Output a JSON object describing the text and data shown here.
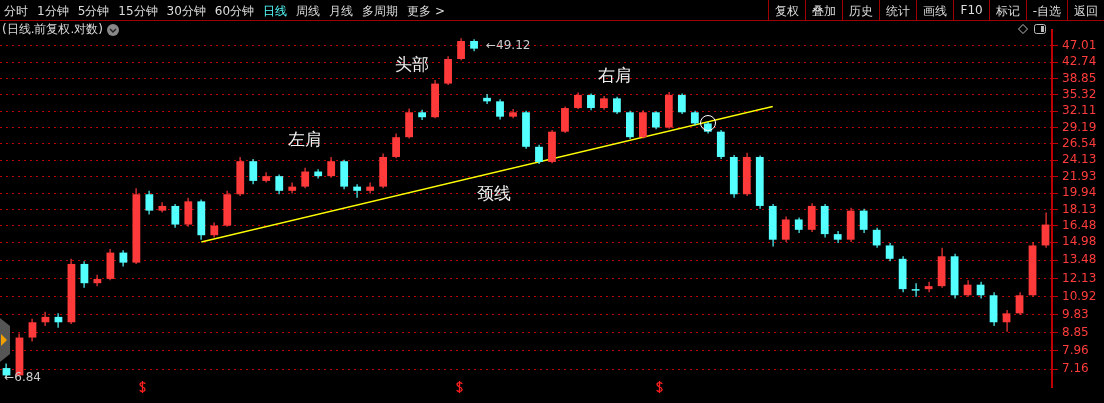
{
  "chart_data": {
    "type": "candlestick",
    "title": "(日线.前复权.对数)",
    "categories": [
      null,
      null,
      null,
      null,
      null,
      null,
      null,
      null,
      null,
      null,
      null,
      null,
      null,
      null,
      null,
      null,
      null,
      null,
      null,
      null,
      null,
      null,
      null,
      null,
      null,
      null,
      null,
      null,
      null,
      null,
      null,
      null,
      null,
      null,
      null,
      null,
      null,
      null,
      null,
      null,
      null,
      null,
      null,
      null,
      null,
      null,
      null,
      null,
      null,
      null,
      null,
      null,
      null,
      null,
      null,
      null,
      null,
      null,
      null,
      null,
      null,
      null,
      null,
      null,
      null,
      null,
      null,
      null,
      null,
      null,
      null,
      null,
      null,
      null,
      null,
      null,
      null,
      null,
      null,
      null,
      null
    ],
    "ohlc": [
      [
        7.2,
        7.4,
        6.84,
        6.9
      ],
      [
        6.9,
        8.8,
        6.9,
        8.6
      ],
      [
        8.6,
        9.6,
        8.4,
        9.4
      ],
      [
        9.4,
        10.0,
        9.2,
        9.7
      ],
      [
        9.7,
        9.9,
        9.1,
        9.4
      ],
      [
        9.4,
        13.6,
        9.3,
        13.2
      ],
      [
        13.2,
        13.4,
        11.5,
        11.8
      ],
      [
        11.8,
        12.4,
        11.6,
        12.1
      ],
      [
        12.1,
        14.4,
        12.0,
        14.1
      ],
      [
        14.1,
        14.3,
        13.0,
        13.3
      ],
      [
        13.3,
        20.5,
        13.2,
        19.8
      ],
      [
        19.8,
        20.2,
        17.6,
        18.0
      ],
      [
        18.0,
        18.9,
        17.8,
        18.5
      ],
      [
        18.5,
        18.7,
        16.3,
        16.6
      ],
      [
        16.6,
        19.4,
        16.4,
        19.0
      ],
      [
        19.0,
        19.2,
        15.2,
        15.6
      ],
      [
        15.6,
        16.8,
        15.4,
        16.5
      ],
      [
        16.5,
        20.2,
        16.4,
        19.8
      ],
      [
        19.8,
        24.6,
        19.6,
        24.0
      ],
      [
        24.0,
        24.3,
        21.0,
        21.4
      ],
      [
        21.4,
        22.5,
        21.2,
        22.0
      ],
      [
        22.0,
        22.2,
        19.8,
        20.2
      ],
      [
        20.2,
        21.2,
        19.9,
        20.7
      ],
      [
        20.7,
        23.1,
        20.5,
        22.6
      ],
      [
        22.6,
        22.9,
        21.7,
        22.0
      ],
      [
        22.0,
        24.6,
        21.8,
        24.0
      ],
      [
        24.0,
        24.2,
        20.4,
        20.7
      ],
      [
        20.7,
        21.0,
        19.4,
        20.2
      ],
      [
        20.2,
        21.2,
        19.9,
        20.7
      ],
      [
        20.7,
        25.1,
        20.5,
        24.6
      ],
      [
        24.6,
        28.2,
        24.4,
        27.6
      ],
      [
        27.6,
        32.6,
        27.4,
        31.9
      ],
      [
        31.9,
        32.4,
        30.5,
        31.0
      ],
      [
        31.0,
        38.5,
        30.8,
        37.7
      ],
      [
        37.7,
        44.2,
        37.4,
        43.5
      ],
      [
        43.5,
        49.12,
        43.2,
        48.3
      ],
      [
        48.3,
        48.8,
        45.5,
        46.2
      ],
      [
        34.7,
        35.5,
        33.5,
        34.0
      ],
      [
        34.0,
        34.4,
        30.6,
        31.1
      ],
      [
        31.1,
        32.5,
        30.8,
        31.9
      ],
      [
        31.9,
        32.2,
        25.8,
        26.1
      ],
      [
        26.1,
        26.4,
        23.6,
        23.9
      ],
      [
        23.9,
        28.8,
        23.7,
        28.5
      ],
      [
        28.5,
        33.0,
        28.3,
        32.7
      ],
      [
        32.7,
        35.8,
        32.5,
        35.3
      ],
      [
        35.3,
        35.6,
        32.3,
        32.7
      ],
      [
        32.7,
        35.1,
        32.4,
        34.6
      ],
      [
        34.6,
        34.9,
        31.6,
        31.9
      ],
      [
        31.9,
        32.2,
        27.3,
        27.6
      ],
      [
        27.6,
        32.3,
        27.4,
        31.9
      ],
      [
        31.9,
        32.1,
        28.9,
        29.2
      ],
      [
        29.2,
        35.9,
        29.0,
        35.3
      ],
      [
        35.3,
        35.6,
        31.6,
        31.9
      ],
      [
        31.9,
        32.2,
        29.6,
        29.9
      ],
      [
        29.9,
        30.2,
        28.2,
        28.5
      ],
      [
        28.5,
        28.8,
        24.3,
        24.6
      ],
      [
        24.6,
        24.9,
        19.4,
        19.8
      ],
      [
        19.8,
        25.2,
        19.6,
        24.6
      ],
      [
        24.6,
        24.8,
        18.2,
        18.5
      ],
      [
        18.5,
        18.7,
        14.6,
        15.2
      ],
      [
        15.2,
        17.4,
        15.0,
        17.1
      ],
      [
        17.1,
        17.3,
        15.8,
        16.1
      ],
      [
        16.1,
        18.8,
        15.9,
        18.5
      ],
      [
        18.5,
        18.7,
        15.4,
        15.7
      ],
      [
        15.7,
        16.0,
        14.9,
        15.2
      ],
      [
        15.2,
        18.3,
        15.0,
        18.0
      ],
      [
        18.0,
        18.2,
        15.8,
        16.1
      ],
      [
        16.1,
        16.3,
        14.5,
        14.7
      ],
      [
        14.7,
        14.9,
        13.4,
        13.6
      ],
      [
        13.6,
        13.8,
        11.2,
        11.4
      ],
      [
        11.4,
        11.8,
        10.9,
        11.3
      ],
      [
        11.4,
        11.9,
        11.2,
        11.6
      ],
      [
        11.6,
        14.5,
        11.5,
        13.8
      ],
      [
        13.8,
        14.0,
        10.8,
        11.0
      ],
      [
        11.0,
        12.0,
        10.9,
        11.7
      ],
      [
        11.7,
        11.9,
        10.8,
        11.0
      ],
      [
        11.0,
        11.2,
        9.2,
        9.4
      ],
      [
        9.4,
        10.1,
        8.9,
        9.9
      ],
      [
        9.9,
        11.2,
        9.8,
        11.0
      ],
      [
        11.0,
        15.0,
        10.9,
        14.7
      ],
      [
        14.7,
        17.8,
        14.5,
        16.6
      ]
    ],
    "series": [
      {
        "type": "line",
        "color": "#ffff00",
        "values": [
          null,
          null,
          null,
          null,
          null,
          null,
          null,
          null,
          null,
          null,
          null,
          null,
          null,
          null,
          null,
          15.0,
          null,
          null,
          null,
          null,
          null,
          null,
          null,
          null,
          null,
          null,
          null,
          null,
          null,
          null,
          null,
          null,
          null,
          null,
          null,
          null,
          null,
          null,
          null,
          null,
          null,
          null,
          null,
          null,
          null,
          null,
          null,
          null,
          null,
          null,
          null,
          null,
          null,
          null,
          null,
          null,
          null,
          null,
          null,
          33.0,
          null,
          null,
          null,
          null,
          null,
          null,
          null,
          null,
          null,
          null,
          null,
          null,
          null,
          null,
          null,
          null,
          null,
          null,
          null,
          null,
          null
        ]
      }
    ],
    "log": true,
    "ylim": [
      6.45,
      51.5
    ],
    "yticks": [
      7.16,
      7.96,
      8.85,
      9.83,
      10.92,
      12.13,
      13.48,
      14.98,
      16.48,
      18.13,
      19.94,
      21.93,
      24.13,
      26.54,
      29.19,
      32.11,
      35.32,
      38.85,
      42.74,
      47.01
    ],
    "grid": true,
    "legend": false,
    "tick_labels": "y",
    "annotations": [
      "头部",
      "左肩",
      "右肩",
      "颈线",
      "←49.12",
      "←6.84",
      "分时",
      "1分钟",
      "5分钟",
      "15分钟",
      "30分钟",
      "60分钟",
      "日线",
      "周线",
      "月线",
      "多周期",
      "更多 >",
      "复权",
      "叠加",
      "历史",
      "统计",
      "画线",
      "F10",
      "标记",
      "-自选",
      "返回"
    ]
  }
}
